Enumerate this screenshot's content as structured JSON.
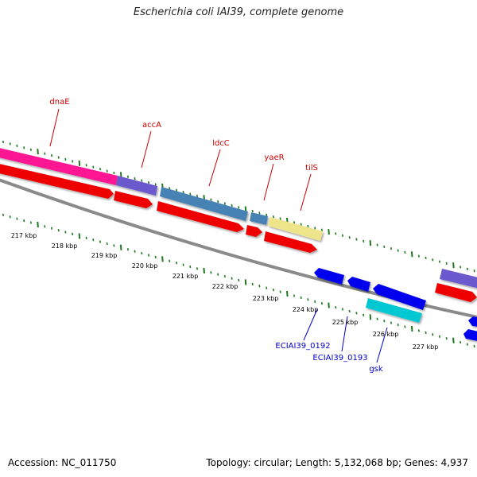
{
  "title": "Escherichia coli IAI39, complete genome",
  "accession_text": "Accession: NC_011750",
  "summary_text": "Topology: circular; Length: 5,132,068 bp; Genes: 4,937",
  "tick_labels": [
    "217 kbp",
    "218 kbp",
    "219 kbp",
    "220 kbp",
    "221 kbp",
    "222 kbp",
    "223 kbp",
    "224 kbp",
    "225 kbp",
    "226 kbp",
    "227 kbp"
  ],
  "forward_gene_labels": [
    "dnaE",
    "accA",
    "ldcC",
    "yaeR",
    "tilS"
  ],
  "reverse_gene_labels": [
    "ECIAI39_0192",
    "ECIAI39_0193",
    "gsk"
  ],
  "colors": {
    "forward_label": "#cc0000",
    "reverse_label": "#0000cc",
    "tick": "#1e7a1e",
    "backbone": "#888888",
    "pink": "#ff1493",
    "purple": "#6a5acd",
    "steelblue": "#4682b4",
    "khaki": "#eee58a",
    "red": "#ee0000",
    "blue": "#0000ee",
    "cyan": "#00c8d2"
  }
}
